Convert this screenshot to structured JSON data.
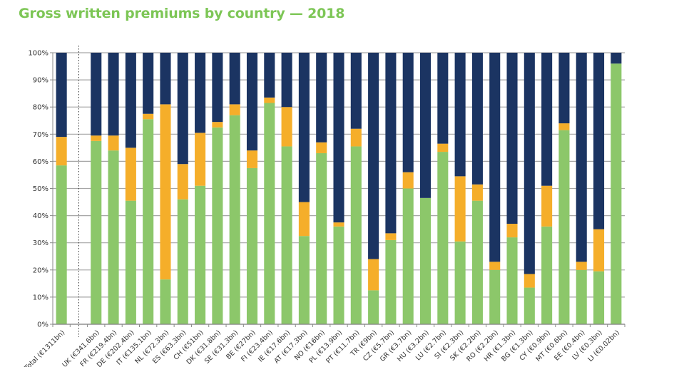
{
  "chart_data": {
    "type": "bar",
    "stacked": true,
    "title": "Gross written premiums by country — 2018",
    "xlabel": "",
    "ylabel": "",
    "ylim": [
      0,
      100
    ],
    "yticks": [
      "0%",
      "10%",
      "20%",
      "30%",
      "40%",
      "50%",
      "60%",
      "70%",
      "80%",
      "90%",
      "100%"
    ],
    "grid": true,
    "legend": "none",
    "categories": [
      "Total (€1311bn)",
      "UK (€341.6bn)",
      "FR (€219.4bn)",
      "DE (€202.4bn)",
      "IT (€135.1bn)",
      "NL (€72.3bn)",
      "ES (€63.3bn)",
      "CH (€51bn)",
      "DK (€31.8bn)",
      "SE (€31.3bn)",
      "BE (€27bn)",
      "FI (€23.4bn)",
      "IE (€17.6bn)",
      "AT (€17.3bn)",
      "NO (€16bn)",
      "PL (€13.9bn)",
      "PT (€11.7bn)",
      "TR (€9bn)",
      "CZ (€5.7bn)",
      "GR (€3.7bn)",
      "HU (€3.2bn)",
      "LU (€2.7bn)",
      "SI (€2.3bn)",
      "SK (€2.2bn)",
      "RO (€2.2bn)",
      "HR (€1.3bn)",
      "BG (€1.3bn)",
      "CY (€0.9bn)",
      "MT (€0.6bn)",
      "EE (€0.4bn)",
      "LV (€0.3bn)",
      "LI (€0.02bn)"
    ],
    "series": [
      {
        "name": "green",
        "color": "#8cc76a",
        "values": [
          58.5,
          67.5,
          64,
          45.5,
          75.5,
          16.5,
          46,
          51,
          72.5,
          77,
          57.5,
          81.5,
          65.5,
          32.5,
          63,
          36,
          65.5,
          12.5,
          31,
          50,
          46.5,
          63.5,
          30.5,
          45.5,
          20,
          32,
          13.5,
          36,
          71.5,
          20,
          19.5,
          96
        ]
      },
      {
        "name": "orange",
        "color": "#f5ae2a",
        "values": [
          10.5,
          2,
          5.5,
          19.5,
          2,
          64.5,
          13,
          19.5,
          2,
          4,
          6.5,
          2,
          14.5,
          12.5,
          4,
          1.5,
          6.5,
          11.5,
          2.5,
          6,
          0,
          3,
          24,
          6,
          3,
          5,
          5,
          15,
          2.5,
          3,
          15.5,
          0
        ]
      },
      {
        "name": "navy",
        "color": "#1b3462",
        "values": [
          31,
          30.5,
          30.5,
          35,
          22.5,
          19,
          41,
          29.5,
          25.5,
          19,
          36,
          16.5,
          20,
          55,
          33,
          62.5,
          28,
          76,
          66.5,
          44,
          53.5,
          33.5,
          45.5,
          48.5,
          77,
          63,
          81.5,
          49,
          26,
          77,
          65,
          4
        ]
      }
    ],
    "separator_after_index": 0
  }
}
